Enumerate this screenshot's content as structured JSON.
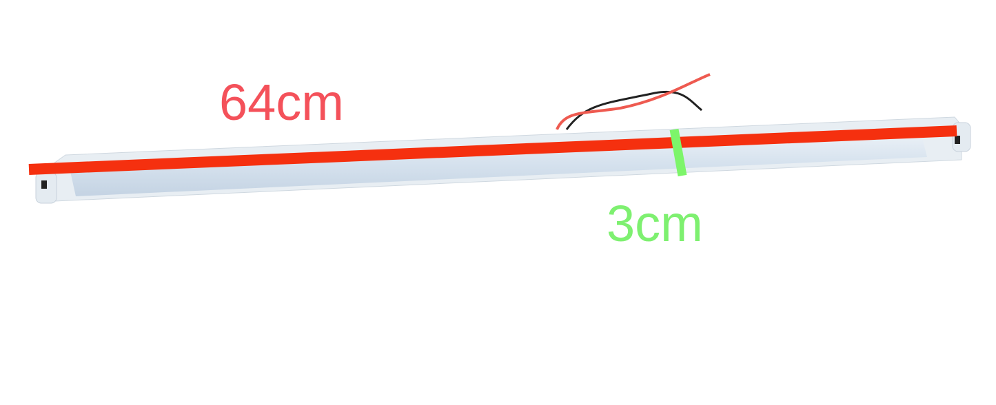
{
  "annotations": {
    "length_label": "64cm",
    "diameter_label": "3cm"
  },
  "colors": {
    "length_text": "#f4515a",
    "length_line": "#f5300f",
    "diameter_text": "#7ef070",
    "diameter_line": "#7df56a",
    "tube": "#dfe8f2"
  }
}
